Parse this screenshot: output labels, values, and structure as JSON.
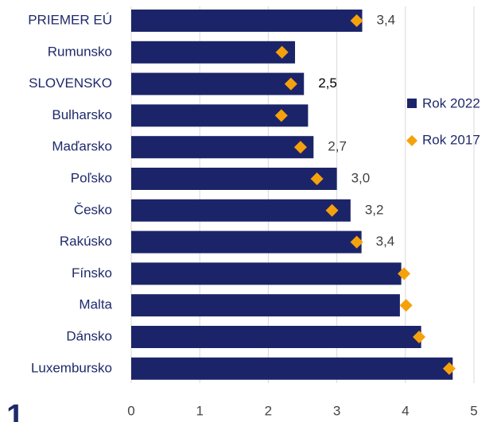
{
  "chart_data": {
    "type": "bar",
    "orientation": "horizontal",
    "categories": [
      "PRIEMER EÚ",
      "Rumunsko",
      "SLOVENSKO",
      "Bulharsko",
      "Maďarsko",
      "Poľsko",
      "Česko",
      "Rakúsko",
      "Fínsko",
      "Malta",
      "Dánsko",
      "Luxembursko"
    ],
    "series": [
      {
        "name": "Rok 2022",
        "color": "#1c2469",
        "values": [
          3.37,
          2.39,
          2.52,
          2.58,
          2.66,
          3.0,
          3.2,
          3.36,
          3.94,
          3.92,
          4.23,
          4.69
        ],
        "value_labels": [
          "3,4",
          null,
          "2,5",
          null,
          "2,7",
          "3,0",
          "3,2",
          "3,4",
          null,
          null,
          null,
          null
        ]
      },
      {
        "name": "Rok 2017",
        "color": "#f5a10c",
        "marker": "diamond",
        "values": [
          3.29,
          2.2,
          2.33,
          2.19,
          2.47,
          2.71,
          2.93,
          3.29,
          3.98,
          4.01,
          4.2,
          4.64
        ]
      }
    ],
    "xlim": [
      0,
      5
    ],
    "xticks": [
      0,
      1,
      2,
      3,
      4,
      5
    ],
    "grid": true,
    "legend": "right",
    "footnote_mark": "1"
  }
}
